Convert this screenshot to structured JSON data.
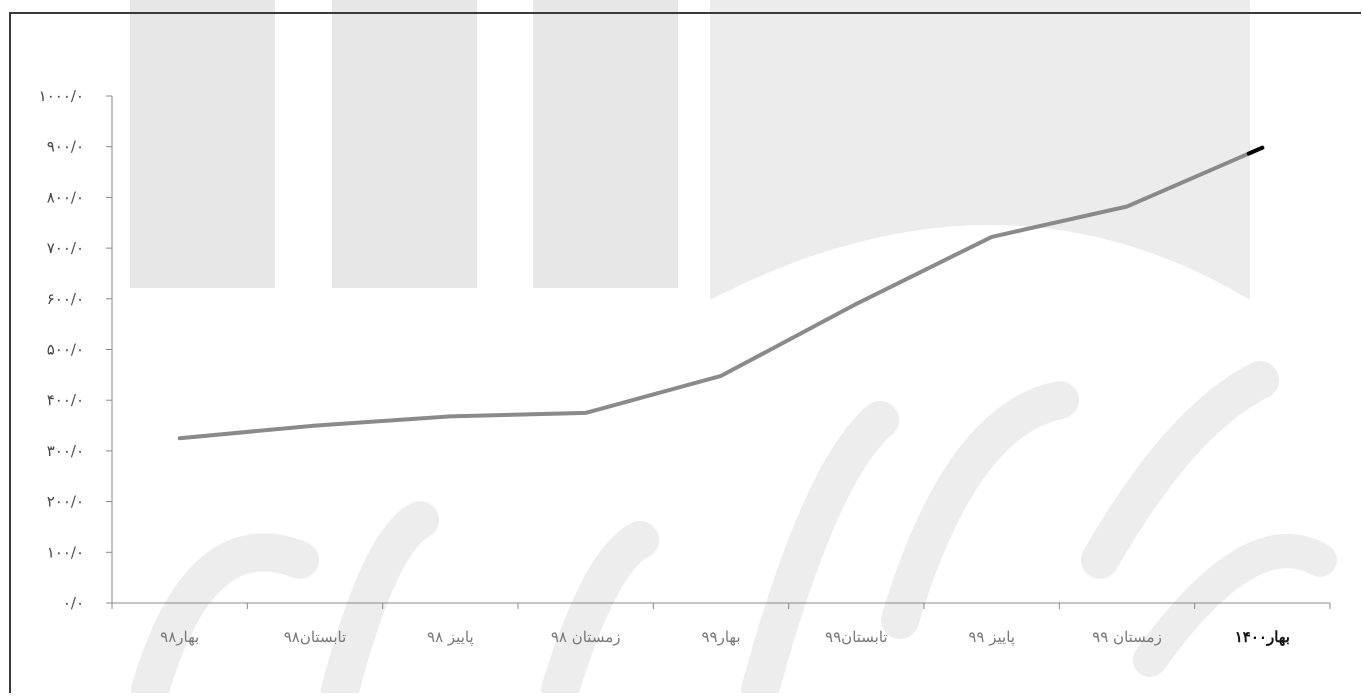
{
  "chart_data": {
    "type": "line",
    "title": "",
    "xlabel": "",
    "ylabel": "",
    "categories": [
      "بهار۹۸",
      "تابستان۹۸",
      "پاییز ۹۸",
      "زمستان ۹۸",
      "بهار۹۹",
      "تابستان۹۹",
      "پاییز ۹۹",
      "زمستان ۹۹",
      "بهار۱۴۰۰"
    ],
    "series": [
      {
        "values": [
          325,
          350,
          368,
          375,
          448,
          590,
          722,
          782,
          898
        ],
        "color": "#8a8a8a"
      }
    ],
    "ylim": [
      0,
      1000
    ],
    "yticks": [
      0,
      100,
      200,
      300,
      400,
      500,
      600,
      700,
      800,
      900,
      1000
    ],
    "ytick_labels": [
      "۰/۰",
      "۱۰۰/۰",
      "۲۰۰/۰",
      "۳۰۰/۰",
      "۴۰۰/۰",
      "۵۰۰/۰",
      "۶۰۰/۰",
      "۷۰۰/۰",
      "۸۰۰/۰",
      "۹۰۰/۰",
      "۱۰۰۰/۰"
    ],
    "grid": false,
    "legend": "none"
  }
}
